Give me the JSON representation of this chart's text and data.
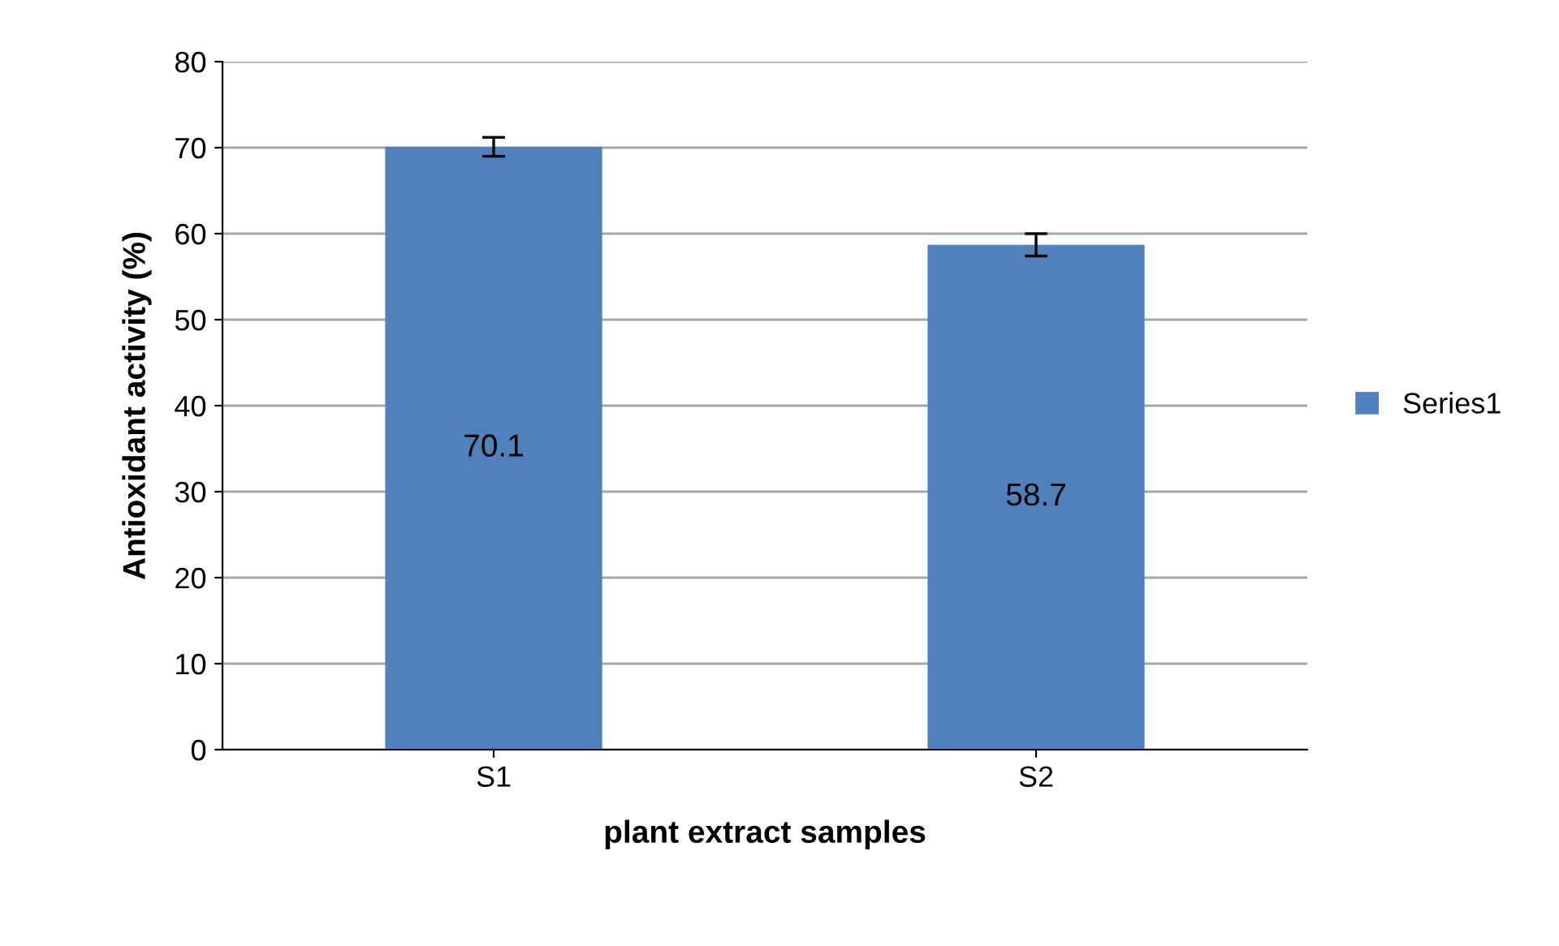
{
  "chart_data": {
    "type": "bar",
    "xlabel": "plant extract samples",
    "ylabel": "Antioxidant activity (%)",
    "categories": [
      "S1",
      "S2"
    ],
    "series": [
      {
        "name": "Series1",
        "color": "#4f81bd",
        "values": [
          70.1,
          58.7
        ],
        "errors": [
          1.1,
          1.3
        ]
      }
    ],
    "data_labels": true,
    "ylim": [
      0,
      80
    ],
    "yticks": [
      0,
      10,
      20,
      30,
      40,
      50,
      60,
      70,
      80
    ],
    "grid": "y",
    "legend": "right"
  }
}
